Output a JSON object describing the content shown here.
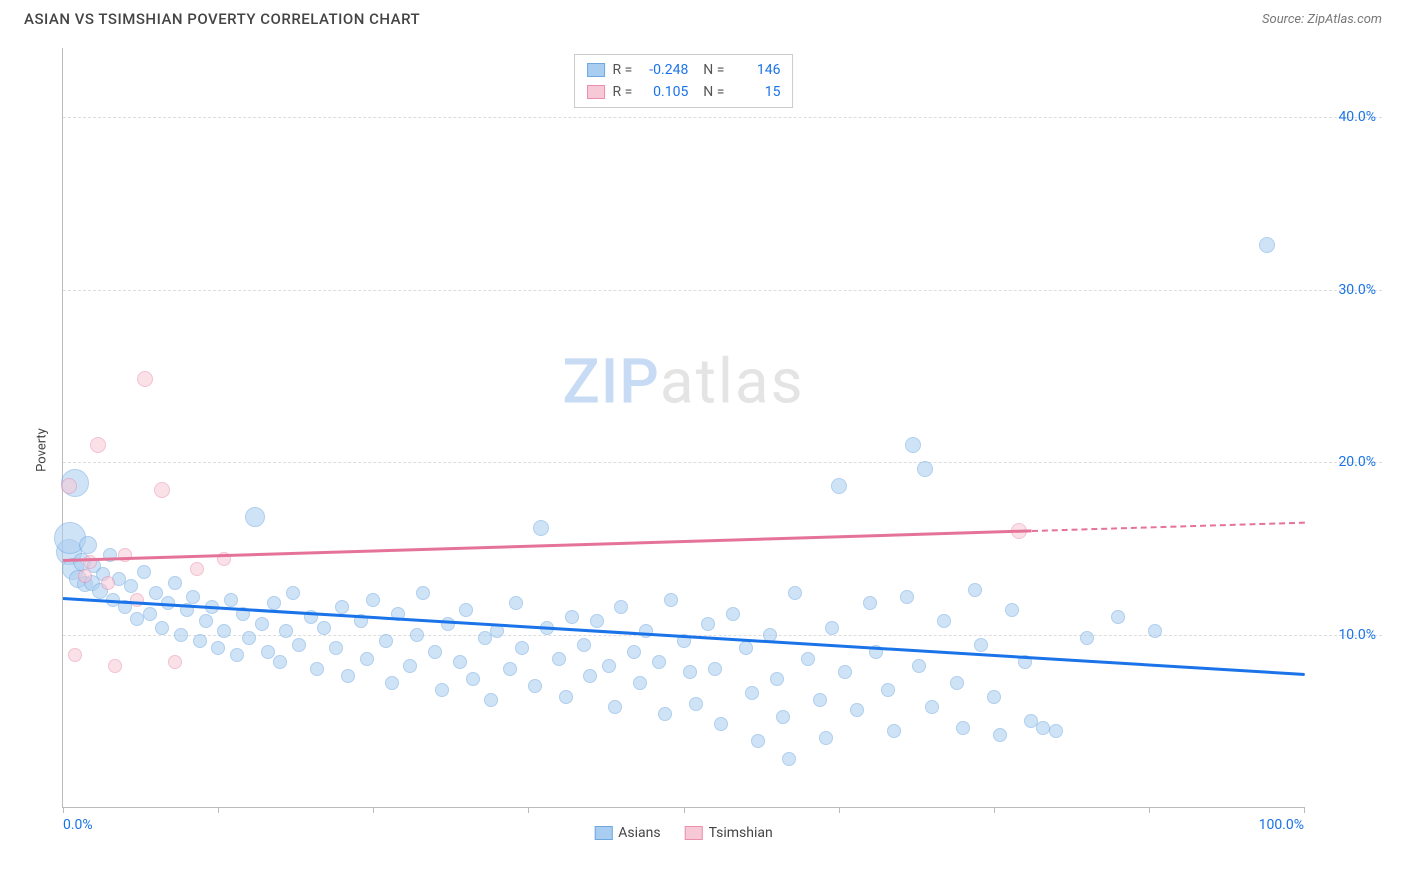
{
  "title": "ASIAN VS TSIMSHIAN POVERTY CORRELATION CHART",
  "source": "Source: ZipAtlas.com",
  "yaxis_label": "Poverty",
  "watermark_zip": "ZIP",
  "watermark_atlas": "atlas",
  "chart": {
    "type": "scatter",
    "xlim": [
      0,
      100
    ],
    "ylim": [
      0,
      44
    ],
    "yticks": [
      10,
      20,
      30,
      40
    ],
    "ytick_labels": [
      "10.0%",
      "20.0%",
      "30.0%",
      "40.0%"
    ],
    "xticks": [
      0,
      12.5,
      25,
      37.5,
      50,
      62.5,
      75,
      87.5,
      100
    ],
    "xtick_labels_shown": {
      "0": "0.0%",
      "100": "100.0%"
    },
    "grid_color": "#dddddd",
    "axis_color": "#bbbbbb",
    "background_color": "#ffffff",
    "tick_label_color": "#1a73e8",
    "tick_label_fontsize": 14
  },
  "series": [
    {
      "name": "Asians",
      "fill_color": "#a9cdf1",
      "stroke_color": "#6fa8e0",
      "fill_opacity": 0.55,
      "trend_color": "#1a73e8",
      "R": "-0.248",
      "N": "146",
      "trend": {
        "x1": 0,
        "y1": 12.2,
        "x2": 100,
        "y2": 7.8,
        "dashed_from_x": null
      },
      "points": [
        {
          "x": 0.5,
          "y": 14.8,
          "r": 13
        },
        {
          "x": 0.6,
          "y": 15.6,
          "r": 16
        },
        {
          "x": 0.8,
          "y": 13.8,
          "r": 11
        },
        {
          "x": 1.0,
          "y": 18.8,
          "r": 14
        },
        {
          "x": 1.2,
          "y": 13.2,
          "r": 9
        },
        {
          "x": 1.5,
          "y": 14.2,
          "r": 9
        },
        {
          "x": 1.8,
          "y": 12.9,
          "r": 8
        },
        {
          "x": 2.0,
          "y": 15.2,
          "r": 9
        },
        {
          "x": 2.3,
          "y": 13.0,
          "r": 8
        },
        {
          "x": 2.5,
          "y": 14.0,
          "r": 7
        },
        {
          "x": 3.0,
          "y": 12.5,
          "r": 8
        },
        {
          "x": 3.2,
          "y": 13.5,
          "r": 7
        },
        {
          "x": 3.8,
          "y": 14.6,
          "r": 7
        },
        {
          "x": 4.0,
          "y": 12.0,
          "r": 7
        },
        {
          "x": 4.5,
          "y": 13.2,
          "r": 7
        },
        {
          "x": 5.0,
          "y": 11.6,
          "r": 7
        },
        {
          "x": 5.5,
          "y": 12.8,
          "r": 7
        },
        {
          "x": 6.0,
          "y": 10.9,
          "r": 7
        },
        {
          "x": 6.5,
          "y": 13.6,
          "r": 7
        },
        {
          "x": 7.0,
          "y": 11.2,
          "r": 7
        },
        {
          "x": 7.5,
          "y": 12.4,
          "r": 7
        },
        {
          "x": 8.0,
          "y": 10.4,
          "r": 7
        },
        {
          "x": 8.5,
          "y": 11.8,
          "r": 7
        },
        {
          "x": 9.0,
          "y": 13.0,
          "r": 7
        },
        {
          "x": 9.5,
          "y": 10.0,
          "r": 7
        },
        {
          "x": 10.0,
          "y": 11.4,
          "r": 7
        },
        {
          "x": 10.5,
          "y": 12.2,
          "r": 7
        },
        {
          "x": 11.0,
          "y": 9.6,
          "r": 7
        },
        {
          "x": 11.5,
          "y": 10.8,
          "r": 7
        },
        {
          "x": 12.0,
          "y": 11.6,
          "r": 7
        },
        {
          "x": 12.5,
          "y": 9.2,
          "r": 7
        },
        {
          "x": 13.0,
          "y": 10.2,
          "r": 7
        },
        {
          "x": 13.5,
          "y": 12.0,
          "r": 7
        },
        {
          "x": 14.0,
          "y": 8.8,
          "r": 7
        },
        {
          "x": 14.5,
          "y": 11.2,
          "r": 7
        },
        {
          "x": 15.0,
          "y": 9.8,
          "r": 7
        },
        {
          "x": 15.5,
          "y": 16.8,
          "r": 10
        },
        {
          "x": 16.0,
          "y": 10.6,
          "r": 7
        },
        {
          "x": 16.5,
          "y": 9.0,
          "r": 7
        },
        {
          "x": 17.0,
          "y": 11.8,
          "r": 7
        },
        {
          "x": 17.5,
          "y": 8.4,
          "r": 7
        },
        {
          "x": 18.0,
          "y": 10.2,
          "r": 7
        },
        {
          "x": 18.5,
          "y": 12.4,
          "r": 7
        },
        {
          "x": 19.0,
          "y": 9.4,
          "r": 7
        },
        {
          "x": 20.0,
          "y": 11.0,
          "r": 7
        },
        {
          "x": 20.5,
          "y": 8.0,
          "r": 7
        },
        {
          "x": 21.0,
          "y": 10.4,
          "r": 7
        },
        {
          "x": 22.0,
          "y": 9.2,
          "r": 7
        },
        {
          "x": 22.5,
          "y": 11.6,
          "r": 7
        },
        {
          "x": 23.0,
          "y": 7.6,
          "r": 7
        },
        {
          "x": 24.0,
          "y": 10.8,
          "r": 7
        },
        {
          "x": 24.5,
          "y": 8.6,
          "r": 7
        },
        {
          "x": 25.0,
          "y": 12.0,
          "r": 7
        },
        {
          "x": 26.0,
          "y": 9.6,
          "r": 7
        },
        {
          "x": 26.5,
          "y": 7.2,
          "r": 7
        },
        {
          "x": 27.0,
          "y": 11.2,
          "r": 7
        },
        {
          "x": 28.0,
          "y": 8.2,
          "r": 7
        },
        {
          "x": 28.5,
          "y": 10.0,
          "r": 7
        },
        {
          "x": 29.0,
          "y": 12.4,
          "r": 7
        },
        {
          "x": 30.0,
          "y": 9.0,
          "r": 7
        },
        {
          "x": 30.5,
          "y": 6.8,
          "r": 7
        },
        {
          "x": 31.0,
          "y": 10.6,
          "r": 7
        },
        {
          "x": 32.0,
          "y": 8.4,
          "r": 7
        },
        {
          "x": 32.5,
          "y": 11.4,
          "r": 7
        },
        {
          "x": 33.0,
          "y": 7.4,
          "r": 7
        },
        {
          "x": 34.0,
          "y": 9.8,
          "r": 7
        },
        {
          "x": 34.5,
          "y": 6.2,
          "r": 7
        },
        {
          "x": 35.0,
          "y": 10.2,
          "r": 7
        },
        {
          "x": 36.0,
          "y": 8.0,
          "r": 7
        },
        {
          "x": 36.5,
          "y": 11.8,
          "r": 7
        },
        {
          "x": 37.0,
          "y": 9.2,
          "r": 7
        },
        {
          "x": 38.0,
          "y": 7.0,
          "r": 7
        },
        {
          "x": 38.5,
          "y": 16.2,
          "r": 8
        },
        {
          "x": 39.0,
          "y": 10.4,
          "r": 7
        },
        {
          "x": 40.0,
          "y": 8.6,
          "r": 7
        },
        {
          "x": 40.5,
          "y": 6.4,
          "r": 7
        },
        {
          "x": 41.0,
          "y": 11.0,
          "r": 7
        },
        {
          "x": 42.0,
          "y": 9.4,
          "r": 7
        },
        {
          "x": 42.5,
          "y": 7.6,
          "r": 7
        },
        {
          "x": 43.0,
          "y": 10.8,
          "r": 7
        },
        {
          "x": 44.0,
          "y": 8.2,
          "r": 7
        },
        {
          "x": 44.5,
          "y": 5.8,
          "r": 7
        },
        {
          "x": 45.0,
          "y": 11.6,
          "r": 7
        },
        {
          "x": 46.0,
          "y": 9.0,
          "r": 7
        },
        {
          "x": 46.5,
          "y": 7.2,
          "r": 7
        },
        {
          "x": 47.0,
          "y": 10.2,
          "r": 7
        },
        {
          "x": 48.0,
          "y": 8.4,
          "r": 7
        },
        {
          "x": 48.5,
          "y": 5.4,
          "r": 7
        },
        {
          "x": 49.0,
          "y": 12.0,
          "r": 7
        },
        {
          "x": 50.0,
          "y": 9.6,
          "r": 7
        },
        {
          "x": 50.5,
          "y": 7.8,
          "r": 7
        },
        {
          "x": 51.0,
          "y": 6.0,
          "r": 7
        },
        {
          "x": 52.0,
          "y": 10.6,
          "r": 7
        },
        {
          "x": 52.5,
          "y": 8.0,
          "r": 7
        },
        {
          "x": 53.0,
          "y": 4.8,
          "r": 7
        },
        {
          "x": 54.0,
          "y": 11.2,
          "r": 7
        },
        {
          "x": 55.0,
          "y": 9.2,
          "r": 7
        },
        {
          "x": 55.5,
          "y": 6.6,
          "r": 7
        },
        {
          "x": 56.0,
          "y": 3.8,
          "r": 7
        },
        {
          "x": 57.0,
          "y": 10.0,
          "r": 7
        },
        {
          "x": 57.5,
          "y": 7.4,
          "r": 7
        },
        {
          "x": 58.0,
          "y": 5.2,
          "r": 7
        },
        {
          "x": 58.5,
          "y": 2.8,
          "r": 7
        },
        {
          "x": 59.0,
          "y": 12.4,
          "r": 7
        },
        {
          "x": 60.0,
          "y": 8.6,
          "r": 7
        },
        {
          "x": 61.0,
          "y": 6.2,
          "r": 7
        },
        {
          "x": 61.5,
          "y": 4.0,
          "r": 7
        },
        {
          "x": 62.5,
          "y": 18.6,
          "r": 8
        },
        {
          "x": 62.0,
          "y": 10.4,
          "r": 7
        },
        {
          "x": 63.0,
          "y": 7.8,
          "r": 7
        },
        {
          "x": 64.0,
          "y": 5.6,
          "r": 7
        },
        {
          "x": 65.0,
          "y": 11.8,
          "r": 7
        },
        {
          "x": 65.5,
          "y": 9.0,
          "r": 7
        },
        {
          "x": 66.5,
          "y": 6.8,
          "r": 7
        },
        {
          "x": 67.0,
          "y": 4.4,
          "r": 7
        },
        {
          "x": 68.0,
          "y": 12.2,
          "r": 7
        },
        {
          "x": 69.0,
          "y": 8.2,
          "r": 7
        },
        {
          "x": 69.5,
          "y": 19.6,
          "r": 8
        },
        {
          "x": 70.0,
          "y": 5.8,
          "r": 7
        },
        {
          "x": 71.0,
          "y": 10.8,
          "r": 7
        },
        {
          "x": 72.0,
          "y": 7.2,
          "r": 7
        },
        {
          "x": 72.5,
          "y": 4.6,
          "r": 7
        },
        {
          "x": 73.5,
          "y": 12.6,
          "r": 7
        },
        {
          "x": 74.0,
          "y": 9.4,
          "r": 7
        },
        {
          "x": 75.0,
          "y": 6.4,
          "r": 7
        },
        {
          "x": 75.5,
          "y": 4.2,
          "r": 7
        },
        {
          "x": 76.5,
          "y": 11.4,
          "r": 7
        },
        {
          "x": 77.5,
          "y": 8.4,
          "r": 7
        },
        {
          "x": 78.0,
          "y": 5.0,
          "r": 7
        },
        {
          "x": 79.0,
          "y": 4.6,
          "r": 7
        },
        {
          "x": 80.0,
          "y": 4.4,
          "r": 7
        },
        {
          "x": 82.5,
          "y": 9.8,
          "r": 7
        },
        {
          "x": 85.0,
          "y": 11.0,
          "r": 7
        },
        {
          "x": 88.0,
          "y": 10.2,
          "r": 7
        },
        {
          "x": 68.5,
          "y": 21.0,
          "r": 8
        },
        {
          "x": 97.0,
          "y": 32.6,
          "r": 8
        }
      ]
    },
    {
      "name": "Tsimshian",
      "fill_color": "#f7c9d6",
      "stroke_color": "#ea8fae",
      "fill_opacity": 0.55,
      "trend_color": "#e57399",
      "R": "0.105",
      "N": "15",
      "trend": {
        "x1": 0,
        "y1": 14.4,
        "x2": 100,
        "y2": 16.6,
        "dashed_from_x": 78
      },
      "points": [
        {
          "x": 0.5,
          "y": 18.6,
          "r": 8
        },
        {
          "x": 1.0,
          "y": 8.8,
          "r": 7
        },
        {
          "x": 1.8,
          "y": 13.4,
          "r": 7
        },
        {
          "x": 2.2,
          "y": 14.2,
          "r": 7
        },
        {
          "x": 2.8,
          "y": 21.0,
          "r": 8
        },
        {
          "x": 3.6,
          "y": 13.0,
          "r": 7
        },
        {
          "x": 4.2,
          "y": 8.2,
          "r": 7
        },
        {
          "x": 5.0,
          "y": 14.6,
          "r": 7
        },
        {
          "x": 6.0,
          "y": 12.0,
          "r": 7
        },
        {
          "x": 6.6,
          "y": 24.8,
          "r": 8
        },
        {
          "x": 8.0,
          "y": 18.4,
          "r": 8
        },
        {
          "x": 9.0,
          "y": 8.4,
          "r": 7
        },
        {
          "x": 10.8,
          "y": 13.8,
          "r": 7
        },
        {
          "x": 13.0,
          "y": 14.4,
          "r": 7
        },
        {
          "x": 77.0,
          "y": 16.0,
          "r": 8
        }
      ]
    }
  ],
  "legend_bottom": [
    {
      "label": "Asians",
      "fill": "#a9cdf1",
      "stroke": "#6fa8e0"
    },
    {
      "label": "Tsimshian",
      "fill": "#f7c9d6",
      "stroke": "#ea8fae"
    }
  ]
}
